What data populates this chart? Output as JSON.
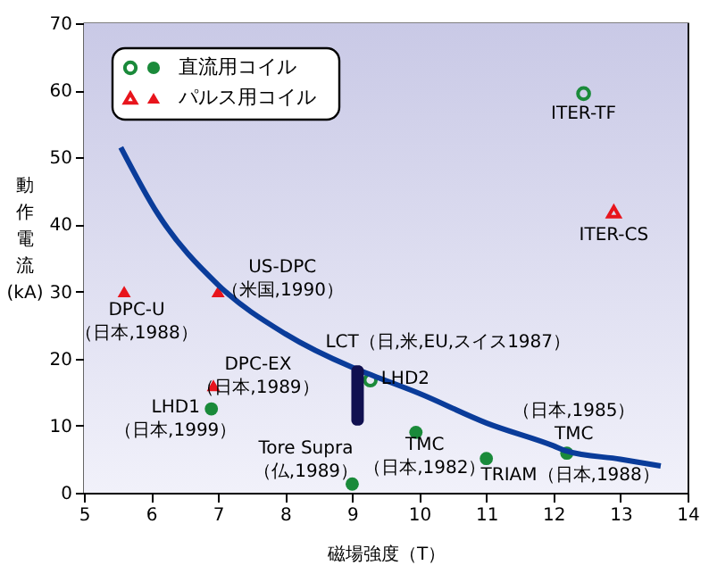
{
  "chart_data": {
    "type": "scatter",
    "xlabel": "磁場強度（T）",
    "ylabel": "動作電流(kA)",
    "xlim": [
      5,
      14
    ],
    "ylim": [
      0,
      70
    ],
    "xticks": [
      5,
      6,
      7,
      8,
      9,
      10,
      11,
      12,
      13,
      14
    ],
    "yticks": [
      0,
      10,
      20,
      30,
      40,
      50,
      60,
      70
    ],
    "legend": "top left",
    "series": [
      {
        "name": "直流用コイル",
        "marker": "circle",
        "color": "#1a8a3a",
        "x": [
          6.9,
          9.0,
          9.95,
          11.0,
          12.2
        ],
        "values": [
          12.5,
          1.3,
          9,
          5.1,
          5.9
        ]
      },
      {
        "marker": "circle-open",
        "color": "#1a8a3a",
        "x": [
          9.27,
          12.45
        ],
        "values": [
          16.8,
          59.5
        ]
      },
      {
        "name": "パルス用コイル",
        "marker": "triangle",
        "color": "#e8141c",
        "x": [
          5.6,
          7.0,
          6.93
        ],
        "values": [
          30,
          30,
          16
        ]
      },
      {
        "marker": "triangle-open",
        "color": "#e8141c",
        "x": [
          12.9
        ],
        "values": [
          41.9
        ]
      },
      {
        "type": "line",
        "marker": "none",
        "line_style": "solid",
        "color": "#0a3c9a",
        "x": [
          5.55,
          6.1,
          7,
          8,
          9,
          9.3,
          10,
          11,
          12,
          12.2,
          13,
          13.6
        ],
        "values": [
          51.5,
          41.6,
          31,
          23.7,
          18.7,
          17.5,
          14.8,
          10.4,
          7,
          6.2,
          5,
          4
        ]
      },
      {
        "type": "bar",
        "color": "#101050",
        "x": [
          9.08
        ],
        "base": [
          10
        ],
        "values": [
          9
        ]
      }
    ],
    "annotations": [
      {
        "text": "ITER-TF",
        "x": 12.45,
        "y": 59.5
      },
      {
        "text": "ITER-CS",
        "x": 12.9,
        "y": 41.9
      },
      {
        "text": "US-DPC\n（米国,1990）",
        "x": 7.0,
        "y": 30
      },
      {
        "text": "DPC-U\n（日本,1988）",
        "x": 5.6,
        "y": 30
      },
      {
        "text": "DPC-EX\n（日本,1989）",
        "x": 6.93,
        "y": 16
      },
      {
        "text": "LHD1\n（日本,1999）",
        "x": 6.9,
        "y": 12.5
      },
      {
        "text": "LHD2",
        "x": 9.27,
        "y": 16.8
      },
      {
        "text": "Tore Supra\n（仏,1989）",
        "x": 9.0,
        "y": 1.3
      },
      {
        "text": "TMC\n（日本,1982）",
        "x": 9.95,
        "y": 9
      },
      {
        "text": "TRIAM（日本,1988）",
        "x": 11.0,
        "y": 5.1
      },
      {
        "text": "（日本,1985）\nTMC",
        "x": 12.2,
        "y": 5.9
      },
      {
        "text": "LCT（日,米,EU,スイス1987）",
        "x": 9.08,
        "y": 19
      }
    ]
  }
}
